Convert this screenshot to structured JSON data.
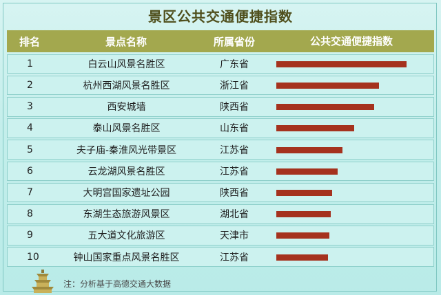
{
  "title": "景区公共交通便捷指数",
  "table": {
    "headers": [
      "排名",
      "景点名称",
      "所属省份",
      "公共交通便捷指数"
    ],
    "rows": [
      {
        "rank": "1",
        "name": "白云山风景名胜区",
        "province": "广东省"
      },
      {
        "rank": "2",
        "name": "杭州西湖风景名胜区",
        "province": "浙江省"
      },
      {
        "rank": "3",
        "name": "西安城墙",
        "province": "陕西省"
      },
      {
        "rank": "4",
        "name": "泰山风景名胜区",
        "province": "山东省"
      },
      {
        "rank": "5",
        "name": "夫子庙-秦淮风光带景区",
        "province": "江苏省"
      },
      {
        "rank": "6",
        "name": "云龙湖风景名胜区",
        "province": "江苏省"
      },
      {
        "rank": "7",
        "name": "大明宫国家遗址公园",
        "province": "陕西省"
      },
      {
        "rank": "8",
        "name": "东湖生态旅游风景区",
        "province": "湖北省"
      },
      {
        "rank": "9",
        "name": "五大道文化旅游区",
        "province": "天津市"
      },
      {
        "rank": "10",
        "name": "钟山国家重点风景名胜区",
        "province": "江苏省"
      }
    ]
  },
  "chart_data": {
    "type": "bar",
    "orientation": "horizontal",
    "categories": [
      "白云山风景名胜区",
      "杭州西湖风景名胜区",
      "西安城墙",
      "泰山风景名胜区",
      "夫子庙-秦淮风光带景区",
      "云龙湖风景名胜区",
      "大明宫国家遗址公园",
      "东湖生态旅游风景区",
      "五大道文化旅游区",
      "钟山国家重点风景名胜区"
    ],
    "values": [
      1.0,
      0.79,
      0.75,
      0.6,
      0.51,
      0.47,
      0.43,
      0.42,
      0.41,
      0.4
    ],
    "bar_color": "#a5321e",
    "xlim": [
      0,
      1
    ]
  },
  "note": "注：分析基于高德交通大数据",
  "colors": {
    "header_bg": "#a3a84e",
    "row_bg": "#ccf2ef",
    "title": "#4f4f1c"
  }
}
